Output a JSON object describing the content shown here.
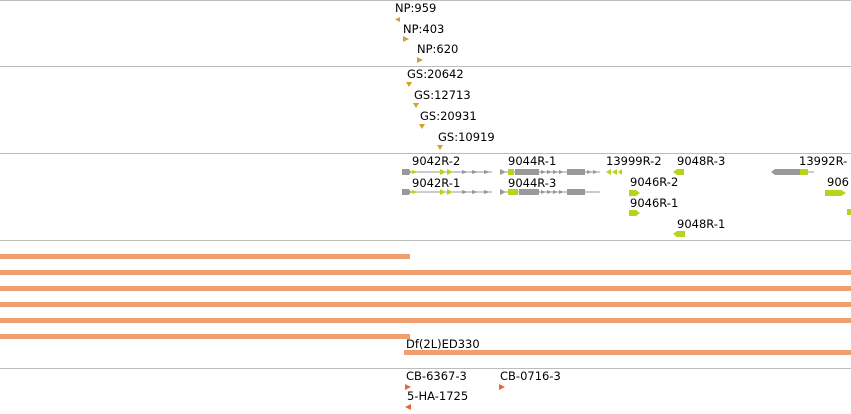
{
  "colors": {
    "track_separator": "#bcbcbc",
    "np_marker": "#c8a23c",
    "gs_marker": "#d4a31c",
    "gene_gray": "#999999",
    "gene_exon": "#b8d21e",
    "deficiency_bar": "#f0a070",
    "cb_marker": "#e8643c"
  },
  "tracks": {
    "np": {
      "items": [
        {
          "label": "NP:959",
          "icon": "triangle-left-icon"
        },
        {
          "label": "NP:403",
          "icon": "triangle-right-icon"
        },
        {
          "label": "NP:620",
          "icon": "triangle-right-icon"
        }
      ]
    },
    "gs": {
      "items": [
        {
          "label": "GS:20642",
          "icon": "triangle-down-icon"
        },
        {
          "label": "GS:12713",
          "icon": "triangle-down-icon"
        },
        {
          "label": "GS:20931",
          "icon": "triangle-down-icon"
        },
        {
          "label": "GS:10919",
          "icon": "triangle-down-icon"
        }
      ]
    },
    "genes": {
      "items": [
        {
          "label": "9042R-2"
        },
        {
          "label": "9042R-1"
        },
        {
          "label": "9044R-1"
        },
        {
          "label": "9044R-3"
        },
        {
          "label": "13999R-2"
        },
        {
          "label": "9048R-3"
        },
        {
          "label": "9046R-2"
        },
        {
          "label": "9046R-1"
        },
        {
          "label": "9048R-1"
        },
        {
          "label": "13992R-"
        },
        {
          "label": "906"
        }
      ]
    },
    "deficiency": {
      "label": "Df(2L)ED330"
    },
    "cb": {
      "items": [
        {
          "label": "CB-6367-3",
          "icon": "triangle-right-icon"
        },
        {
          "label": "CB-0716-3",
          "icon": "triangle-right-icon"
        },
        {
          "label": "5-HA-1725",
          "icon": "triangle-left-icon"
        }
      ]
    }
  }
}
